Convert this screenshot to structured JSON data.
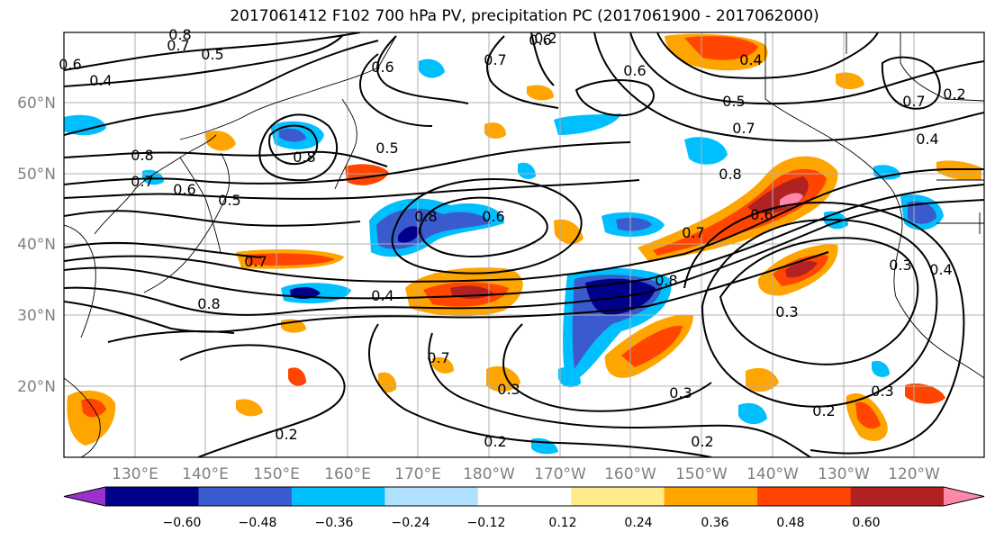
{
  "title": "2017061412 F102 700 hPa PV, precipitation PC (2017061900 - 2017062000)",
  "lon_labels": [
    "130°E",
    "140°E",
    "150°E",
    "160°E",
    "170°E",
    "180°W",
    "170°W",
    "160°W",
    "150°W",
    "140°W",
    "130°W",
    "120°W"
  ],
  "lat_labels": [
    "60°N",
    "50°N",
    "40°N",
    "30°N",
    "20°N"
  ],
  "colorbar": {
    "ticks": [
      "−0.60",
      "−0.48",
      "−0.36",
      "−0.24",
      "−0.12",
      "0.12",
      "0.24",
      "0.36",
      "0.48",
      "0.60"
    ],
    "colors": [
      "#9932cc",
      "#00008b",
      "#3a5bcd",
      "#00bfff",
      "#b0e0ff",
      "#ffffff",
      "#ffeb8a",
      "#ffa500",
      "#ff4500",
      "#b22222",
      "#ff88aa"
    ]
  },
  "contour_labels": [
    "0.8",
    "0.7",
    "0.5",
    "0.6",
    "0.4",
    "0.6",
    "0.7",
    "0.6",
    "0.4",
    "0.5",
    "0.7",
    "0.6",
    "0.7",
    "0.4",
    "0.8",
    "0.8",
    "0.5",
    "0.8",
    "0.7",
    "0.6",
    "0.5",
    "0.8",
    "0.6",
    "0.7",
    "0.8",
    "0.6",
    "0.7",
    "0.4",
    "0.8",
    "0.7",
    "0.3",
    "0.3",
    "0.3",
    "0.2",
    "0.2",
    "0.2",
    "0.2",
    "0.3",
    "0.2",
    "0.3",
    "0.4",
    "0.2"
  ],
  "colors": {
    "frame": "#000000",
    "grid": "#b0b0b0",
    "tick_text": "#808080"
  }
}
